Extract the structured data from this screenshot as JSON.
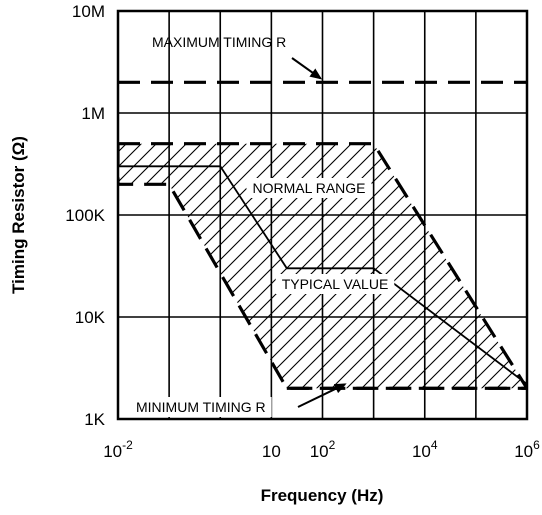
{
  "chart_data": {
    "type": "area",
    "xlabel": "Frequency (Hz)",
    "ylabel": "Timing Resistor  (Ω)",
    "x_scale": "log",
    "y_scale": "log",
    "xlim": [
      0.01,
      1000000
    ],
    "ylim": [
      1000,
      10000000
    ],
    "grid": true,
    "x_tick_values": [
      0.01,
      0.1,
      1,
      10,
      100,
      1000,
      10000,
      100000,
      1000000
    ],
    "x_labels": [
      {
        "value": 0.01,
        "base": "10",
        "exp": "-2"
      },
      {
        "value": 10,
        "base": "10",
        "exp": ""
      },
      {
        "value": 100,
        "base": "10",
        "exp": "2"
      },
      {
        "value": 10000,
        "base": "10",
        "exp": "4"
      },
      {
        "value": 1000000,
        "base": "10",
        "exp": "6"
      }
    ],
    "y_tick_values": [
      1000,
      10000,
      100000,
      1000000,
      10000000
    ],
    "y_labels": [
      "1K",
      "10K",
      "100K",
      "1M",
      "10M"
    ],
    "series": [
      {
        "name": "MAXIMUM TIMING R",
        "style": "dashed-heavy",
        "points": [
          [
            0.01,
            2000000
          ],
          [
            1000000,
            2000000
          ]
        ]
      },
      {
        "name": "NORMAL  RANGE",
        "style": "dashed-heavy-hatched-region",
        "points": [
          [
            0.01,
            500000
          ],
          [
            1000,
            500000
          ],
          [
            1000000,
            2000
          ],
          [
            20,
            2000
          ],
          [
            0.1,
            200000
          ],
          [
            0.01,
            200000
          ],
          [
            0.01,
            500000
          ]
        ]
      },
      {
        "name": "TYPICAL VALUE",
        "style": "solid",
        "points": [
          [
            0.01,
            300000
          ],
          [
            1,
            300000
          ],
          [
            20,
            30000
          ],
          [
            1000,
            30000
          ],
          [
            1000000,
            2200
          ]
        ]
      },
      {
        "name": "MINIMUM TIMING R",
        "style": "dashed-heavy",
        "points": [
          [
            20,
            2000
          ],
          [
            1000000,
            2000
          ]
        ]
      }
    ],
    "annotations": [
      {
        "text": "MAXIMUM TIMING R",
        "points_to": [
          100,
          2000000
        ]
      },
      {
        "text": "NORMAL  RANGE"
      },
      {
        "text": "TYPICAL VALUE"
      },
      {
        "text": "MINIMUM TIMING R",
        "points_to": [
          300,
          2000
        ]
      }
    ]
  }
}
